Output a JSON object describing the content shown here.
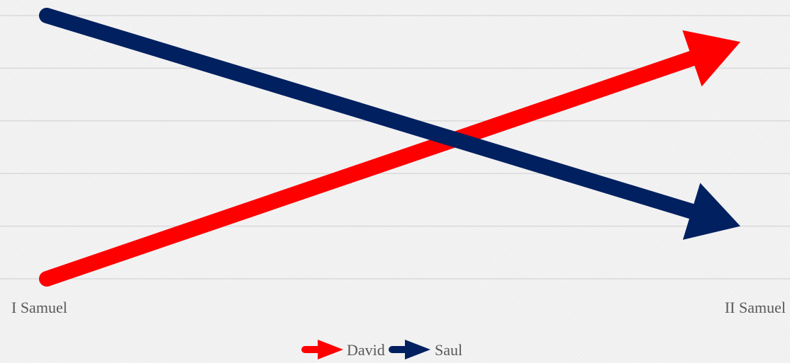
{
  "chart_data": {
    "type": "line",
    "title": "",
    "xlabel": "",
    "ylabel": "",
    "categories": [
      "I Samuel",
      "II Samuel"
    ],
    "ylim": [
      0,
      5
    ],
    "grid": true,
    "legend_position": "bottom",
    "series": [
      {
        "name": "David",
        "values": [
          0,
          4.5
        ],
        "color": "#ff0000"
      },
      {
        "name": "Saul",
        "values": [
          5,
          1
        ],
        "color": "#002060"
      }
    ]
  }
}
